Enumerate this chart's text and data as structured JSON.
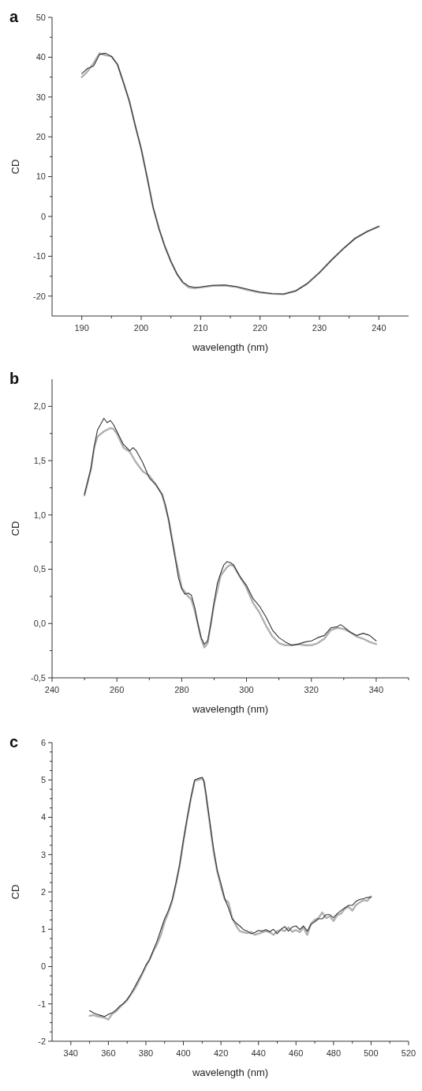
{
  "chart_data": [
    {
      "type": "line",
      "title": "a",
      "xlabel": "wavelength (nm)",
      "ylabel": "CD",
      "xlim": [
        185,
        245
      ],
      "ylim": [
        -25,
        50
      ],
      "xticks": [
        190,
        {
          "value": 195,
          "label": null
        },
        200,
        {
          "value": 205,
          "label": null
        },
        210,
        {
          "value": 215,
          "label": null
        },
        220,
        {
          "value": 225,
          "label": null
        },
        230,
        {
          "value": 235,
          "label": null
        },
        240
      ],
      "yticks": [
        -20,
        {
          "value": -15,
          "label": null
        },
        -10,
        {
          "value": -5,
          "label": null
        },
        0,
        {
          "value": 5,
          "label": null
        },
        10,
        {
          "value": 15,
          "label": null
        },
        20,
        {
          "value": 25,
          "label": null
        },
        30,
        {
          "value": 35,
          "label": null
        },
        40,
        {
          "value": 45,
          "label": null
        },
        50
      ],
      "grid": false,
      "series": [
        {
          "color": "#b0b0b0",
          "x": [
            190,
            191,
            192,
            193,
            194,
            195,
            196,
            197,
            198,
            199,
            200,
            201,
            202,
            203,
            204,
            205,
            206,
            207,
            208,
            209,
            210,
            212,
            214,
            216,
            218,
            220,
            222,
            224,
            226,
            228,
            230,
            232,
            234,
            236,
            238,
            240
          ],
          "values": [
            35,
            36.5,
            38.5,
            41,
            40.5,
            40.2,
            38.2,
            33.7,
            29,
            22.8,
            17,
            9.8,
            2.3,
            -3.1,
            -7.6,
            -11.3,
            -14.4,
            -16.6,
            -17.8,
            -18,
            -17.8,
            -17.4,
            -17.3,
            -17.7,
            -18.5,
            -19.1,
            -19.4,
            -19.5,
            -18.7,
            -16.8,
            -14.1,
            -11,
            -8.1,
            -5.5,
            -3.8,
            -2.5
          ]
        },
        {
          "color": "#333333",
          "x": [
            190,
            191,
            192,
            193,
            194,
            195,
            196,
            197,
            198,
            199,
            200,
            201,
            202,
            203,
            204,
            205,
            206,
            207,
            208,
            209,
            210,
            212,
            214,
            216,
            218,
            220,
            222,
            224,
            226,
            228,
            230,
            232,
            234,
            236,
            238,
            240
          ],
          "values": [
            35.9,
            37.2,
            37.8,
            40.7,
            41,
            40.2,
            38.2,
            33.7,
            29,
            22.8,
            17,
            9.8,
            2.3,
            -3.1,
            -7.6,
            -11.3,
            -14.4,
            -16.5,
            -17.5,
            -17.8,
            -17.7,
            -17.3,
            -17.2,
            -17.6,
            -18.3,
            -19,
            -19.4,
            -19.5,
            -18.7,
            -16.8,
            -14.1,
            -11,
            -8.1,
            -5.5,
            -3.8,
            -2.5
          ]
        }
      ]
    },
    {
      "type": "line",
      "title": "b",
      "xlabel": "wavelength (nm)",
      "ylabel": "CD",
      "xlim": [
        240,
        350
      ],
      "ylim": [
        -0.5,
        2.25
      ],
      "xticks": [
        240,
        {
          "value": 250,
          "label": null
        },
        260,
        {
          "value": 270,
          "label": null
        },
        280,
        {
          "value": 290,
          "label": null
        },
        300,
        {
          "value": 310,
          "label": null
        },
        320,
        {
          "value": 330,
          "label": null
        },
        340,
        {
          "value": 350,
          "label": null
        }
      ],
      "yticks": [
        {
          "value": -0.5,
          "label": "-0,5"
        },
        {
          "value": -0.25,
          "label": null
        },
        {
          "value": 0,
          "label": "0,0"
        },
        {
          "value": 0.25,
          "label": null
        },
        {
          "value": 0.5,
          "label": "0,5"
        },
        {
          "value": 0.75,
          "label": null
        },
        {
          "value": 1,
          "label": "1,0"
        },
        {
          "value": 1.25,
          "label": null
        },
        {
          "value": 1.5,
          "label": "1,5"
        },
        {
          "value": 1.75,
          "label": null
        },
        {
          "value": 2,
          "label": "2,0"
        }
      ],
      "grid": false,
      "series": [
        {
          "color": "#b0b0b0",
          "x": [
            250,
            252,
            253,
            254,
            256,
            258,
            259,
            260,
            262,
            264,
            266,
            268,
            270,
            272,
            274,
            276,
            278,
            280,
            282,
            283,
            284,
            286,
            287,
            288,
            290,
            292,
            294,
            295,
            296,
            298,
            300,
            302,
            304,
            306,
            308,
            310,
            312,
            314,
            316,
            318,
            320,
            322,
            324,
            326,
            328,
            330,
            332,
            334,
            336,
            338,
            340
          ],
          "values": [
            1.18,
            1.42,
            1.62,
            1.72,
            1.77,
            1.8,
            1.79,
            1.75,
            1.62,
            1.58,
            1.48,
            1.4,
            1.36,
            1.28,
            1.19,
            0.95,
            0.62,
            0.33,
            0.25,
            0.22,
            0.12,
            -0.14,
            -0.22,
            -0.18,
            0.18,
            0.44,
            0.52,
            0.54,
            0.53,
            0.43,
            0.33,
            0.19,
            0.1,
            -0.02,
            -0.12,
            -0.18,
            -0.2,
            -0.2,
            -0.19,
            -0.2,
            -0.2,
            -0.18,
            -0.14,
            -0.06,
            -0.04,
            -0.05,
            -0.08,
            -0.12,
            -0.14,
            -0.17,
            -0.19
          ]
        },
        {
          "color": "#333333",
          "x": [
            250,
            252,
            253,
            254,
            256,
            257,
            258,
            259,
            260,
            262,
            264,
            265,
            266,
            268,
            270,
            272,
            274,
            275,
            276,
            277,
            278,
            279,
            280,
            281,
            282,
            283,
            284,
            285,
            286,
            287,
            288,
            289,
            290,
            291,
            292,
            293,
            294,
            295,
            296,
            298,
            300,
            302,
            304,
            306,
            308,
            310,
            312,
            314,
            316,
            318,
            320,
            322,
            324,
            326,
            328,
            329,
            330,
            332,
            334,
            336,
            338,
            340
          ],
          "values": [
            1.19,
            1.43,
            1.63,
            1.78,
            1.89,
            1.85,
            1.87,
            1.83,
            1.77,
            1.65,
            1.59,
            1.62,
            1.59,
            1.48,
            1.34,
            1.28,
            1.18,
            1.09,
            0.95,
            0.77,
            0.6,
            0.42,
            0.32,
            0.27,
            0.28,
            0.26,
            0.15,
            0,
            -0.13,
            -0.19,
            -0.16,
            0,
            0.2,
            0.37,
            0.46,
            0.54,
            0.57,
            0.56,
            0.54,
            0.43,
            0.35,
            0.23,
            0.16,
            0.06,
            -0.06,
            -0.13,
            -0.17,
            -0.2,
            -0.19,
            -0.17,
            -0.16,
            -0.13,
            -0.11,
            -0.04,
            -0.03,
            -0.01,
            -0.03,
            -0.08,
            -0.11,
            -0.09,
            -0.11,
            -0.16
          ]
        }
      ]
    },
    {
      "type": "line",
      "title": "c",
      "xlabel": "wavelength (nm)",
      "ylabel": "CD",
      "xlim": [
        330,
        520
      ],
      "ylim": [
        -2,
        6
      ],
      "xticks": [
        340,
        {
          "value": 350,
          "label": null
        },
        360,
        {
          "value": 370,
          "label": null
        },
        380,
        {
          "value": 390,
          "label": null
        },
        400,
        {
          "value": 410,
          "label": null
        },
        420,
        {
          "value": 430,
          "label": null
        },
        440,
        {
          "value": 450,
          "label": null
        },
        460,
        {
          "value": 470,
          "label": null
        },
        480,
        {
          "value": 490,
          "label": null
        },
        500,
        {
          "value": 510,
          "label": null
        },
        520
      ],
      "yticks": [
        -2,
        {
          "value": -1.75,
          "label": null
        },
        {
          "value": -1.5,
          "label": null
        },
        {
          "value": -1.25,
          "label": null
        },
        -1,
        {
          "value": -0.75,
          "label": null
        },
        {
          "value": -0.5,
          "label": null
        },
        {
          "value": -0.25,
          "label": null
        },
        0,
        {
          "value": 0.25,
          "label": null
        },
        {
          "value": 0.5,
          "label": null
        },
        {
          "value": 0.75,
          "label": null
        },
        1,
        {
          "value": 1.25,
          "label": null
        },
        {
          "value": 1.5,
          "label": null
        },
        {
          "value": 1.75,
          "label": null
        },
        2,
        {
          "value": 2.25,
          "label": null
        },
        {
          "value": 2.5,
          "label": null
        },
        {
          "value": 2.75,
          "label": null
        },
        3,
        {
          "value": 3.25,
          "label": null
        },
        {
          "value": 3.5,
          "label": null
        },
        {
          "value": 3.75,
          "label": null
        },
        4,
        {
          "value": 4.25,
          "label": null
        },
        {
          "value": 4.5,
          "label": null
        },
        {
          "value": 4.75,
          "label": null
        },
        5,
        {
          "value": 5.25,
          "label": null
        },
        {
          "value": 5.5,
          "label": null
        },
        {
          "value": 5.75,
          "label": null
        },
        6
      ],
      "grid": false,
      "series": [
        {
          "color": "#b0b0b0",
          "x": [
            350,
            352,
            354,
            356,
            358,
            360,
            362,
            364,
            366,
            368,
            370,
            372,
            374,
            376,
            378,
            380,
            382,
            384,
            386,
            388,
            390,
            392,
            394,
            396,
            398,
            400,
            402,
            404,
            406,
            408,
            410,
            411,
            412,
            414,
            416,
            418,
            420,
            422,
            424,
            426,
            428,
            430,
            432,
            434,
            436,
            438,
            440,
            442,
            444,
            446,
            448,
            450,
            452,
            454,
            456,
            458,
            460,
            462,
            464,
            466,
            468,
            470,
            472,
            474,
            476,
            478,
            480,
            482,
            484,
            486,
            488,
            490,
            492,
            494,
            496,
            498,
            500
          ],
          "values": [
            -1.32,
            -1.3,
            -1.33,
            -1.35,
            -1.37,
            -1.42,
            -1.27,
            -1.2,
            -1.1,
            -1,
            -0.9,
            -0.75,
            -0.6,
            -0.42,
            -0.2,
            0,
            0.2,
            0.42,
            0.6,
            0.85,
            1.2,
            1.45,
            1.75,
            2.2,
            2.7,
            3.35,
            3.95,
            4.5,
            4.98,
            5,
            5.05,
            4.95,
            4.6,
            3.85,
            3.1,
            2.55,
            2.15,
            1.8,
            1.72,
            1.3,
            1.1,
            0.95,
            0.92,
            0.9,
            0.93,
            0.85,
            0.88,
            0.92,
            0.95,
            0.92,
            0.85,
            0.95,
            0.98,
            0.95,
            1.05,
            0.93,
            0.98,
            0.92,
            1.05,
            0.85,
            1.15,
            1.25,
            1.3,
            1.45,
            1.3,
            1.35,
            1.22,
            1.38,
            1.42,
            1.55,
            1.6,
            1.5,
            1.65,
            1.72,
            1.78,
            1.76,
            1.88
          ]
        },
        {
          "color": "#333333",
          "x": [
            350,
            352,
            354,
            356,
            358,
            360,
            362,
            364,
            366,
            368,
            370,
            372,
            374,
            376,
            378,
            380,
            382,
            384,
            386,
            388,
            390,
            392,
            394,
            396,
            398,
            400,
            402,
            404,
            406,
            408,
            410,
            411,
            412,
            414,
            416,
            418,
            420,
            422,
            424,
            426,
            428,
            430,
            432,
            434,
            436,
            438,
            440,
            442,
            444,
            446,
            448,
            450,
            452,
            454,
            456,
            458,
            460,
            462,
            464,
            466,
            468,
            470,
            472,
            474,
            476,
            478,
            480,
            482,
            484,
            486,
            488,
            490,
            492,
            494,
            496,
            498,
            500
          ],
          "values": [
            -1.18,
            -1.24,
            -1.28,
            -1.31,
            -1.34,
            -1.28,
            -1.24,
            -1.17,
            -1.06,
            -0.99,
            -0.88,
            -0.73,
            -0.55,
            -0.36,
            -0.18,
            0.04,
            0.18,
            0.44,
            0.69,
            0.99,
            1.28,
            1.5,
            1.79,
            2.23,
            2.74,
            3.39,
            3.98,
            4.53,
            5,
            5.04,
            5.07,
            4.96,
            4.64,
            3.91,
            3.18,
            2.59,
            2.23,
            1.82,
            1.57,
            1.28,
            1.17,
            1.09,
            0.99,
            0.95,
            0.88,
            0.91,
            0.97,
            0.95,
            0.99,
            0.93,
            1,
            0.88,
            1,
            1.07,
            0.95,
            1.06,
            1.09,
            0.99,
            1.09,
            0.95,
            1.13,
            1.2,
            1.28,
            1.28,
            1.39,
            1.39,
            1.31,
            1.42,
            1.5,
            1.57,
            1.64,
            1.64,
            1.75,
            1.8,
            1.82,
            1.85,
            1.86
          ]
        }
      ]
    }
  ]
}
